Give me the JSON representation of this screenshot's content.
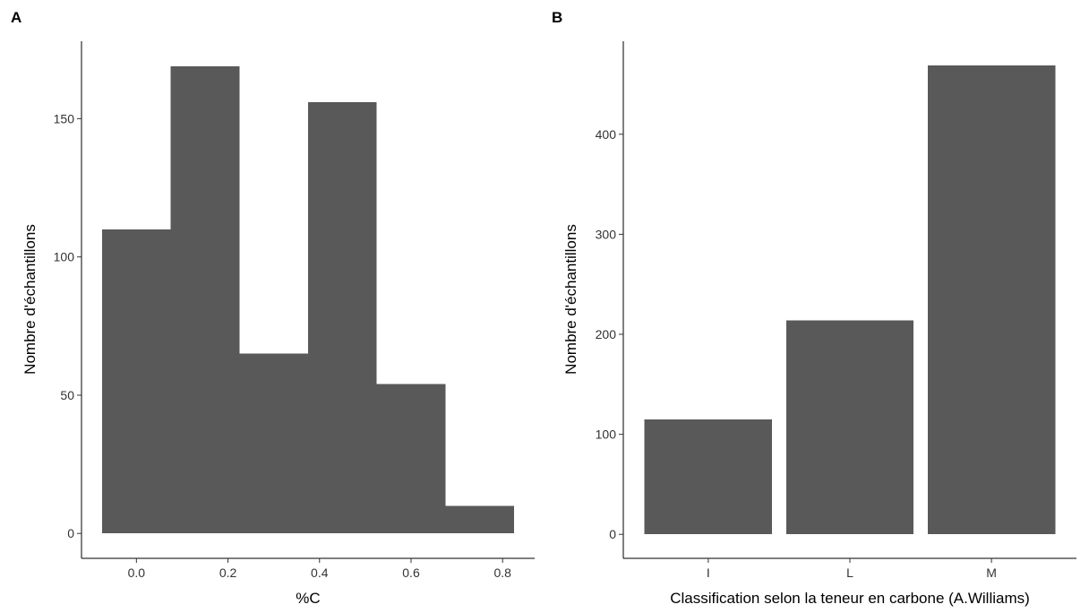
{
  "chart_data": [
    {
      "panel": "A",
      "type": "bar",
      "subtype": "histogram",
      "xlabel": "%C",
      "ylabel": "Nombre d'échantillons",
      "bin_edges": [
        -0.075,
        0.075,
        0.225,
        0.375,
        0.525,
        0.675,
        0.825
      ],
      "values": [
        110,
        169,
        65,
        156,
        54,
        10
      ],
      "xlim": [
        -0.12,
        0.87
      ],
      "ylim": [
        -9,
        178
      ],
      "xticks": [
        0.0,
        0.2,
        0.4,
        0.6,
        0.8
      ],
      "xtick_labels": [
        "0.0",
        "0.2",
        "0.4",
        "0.6",
        "0.8"
      ],
      "yticks": [
        0,
        50,
        100,
        150
      ],
      "ytick_labels": [
        "0",
        "50",
        "100",
        "150"
      ],
      "bar_color": "#595959",
      "grid": false,
      "legend": "none"
    },
    {
      "panel": "B",
      "type": "bar",
      "xlabel": "Classification selon la teneur en carbone (A.Williams)",
      "ylabel": "Nombre d'échantillons",
      "categories": [
        "I",
        "L",
        "M"
      ],
      "values": [
        115,
        214,
        469
      ],
      "ylim": [
        -24,
        493
      ],
      "yticks": [
        0,
        100,
        200,
        300,
        400
      ],
      "ytick_labels": [
        "0",
        "100",
        "200",
        "300",
        "400"
      ],
      "bar_color": "#595959",
      "grid": false,
      "legend": "none"
    }
  ]
}
